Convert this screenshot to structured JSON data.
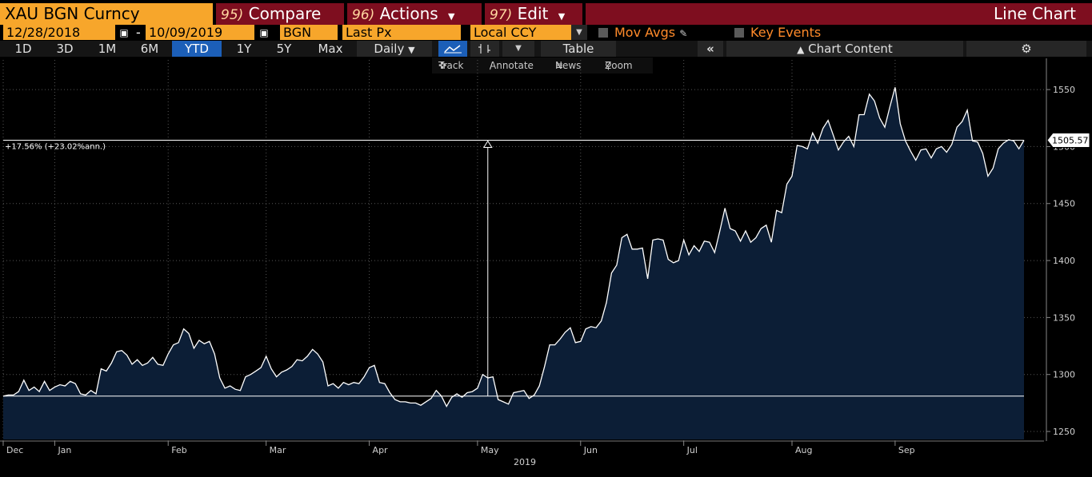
{
  "toolbar": {
    "security": "XAU BGN Curncy",
    "compare_num": "95)",
    "compare_label": "Compare",
    "actions_num": "96)",
    "actions_label": "Actions",
    "edit_num": "97)",
    "edit_label": "Edit",
    "view_title": "Line Chart"
  },
  "settings": {
    "start_date": "12/28/2018",
    "end_date": "10/09/2019",
    "date_separator": "-",
    "source": "BGN",
    "field": "Last Px",
    "currency": "Local CCY",
    "mov_avgs": "Mov Avgs",
    "key_events": "Key Events"
  },
  "periods": [
    "1D",
    "3D",
    "1M",
    "6M",
    "YTD",
    "1Y",
    "5Y",
    "Max"
  ],
  "selected_period": "YTD",
  "frequency": "Daily",
  "table_label": "Table",
  "chart_content_label": "Chart Content",
  "subtools": {
    "track": "Track",
    "annotate": "Annotate",
    "news": "News",
    "zoom": "Zoom"
  },
  "colors": {
    "orange": "#f7a62b",
    "maroon": "#7e0e1f",
    "selected": "#1c5fb8",
    "area_fill": "#0c1e36",
    "line": "#ffffff"
  },
  "chart_data": {
    "type": "area",
    "ylim": [
      1243,
      1562
    ],
    "yticks": [
      1250,
      1300,
      1350,
      1400,
      1450,
      1500,
      1550
    ],
    "xticks": [
      {
        "label": "Dec",
        "i": 0
      },
      {
        "label": "Jan",
        "i": 10
      },
      {
        "label": "Feb",
        "i": 32
      },
      {
        "label": "Mar",
        "i": 51
      },
      {
        "label": "Apr",
        "i": 71
      },
      {
        "label": "May",
        "i": 92
      },
      {
        "label": "Jun",
        "i": 112
      },
      {
        "label": "Jul",
        "i": 132
      },
      {
        "label": "Aug",
        "i": 153
      },
      {
        "label": "Sep",
        "i": 173
      }
    ],
    "year_label": "2019",
    "last_value_label": "1505.57",
    "change_label": "+17.56% (+23.02%ann.)",
    "base_value": 1281,
    "marker_index": 94,
    "values": [
      1281,
      1282,
      1282,
      1285,
      1295,
      1286,
      1289,
      1285,
      1294,
      1286,
      1289,
      1291,
      1290,
      1294,
      1292,
      1283,
      1282,
      1286,
      1283,
      1305,
      1303,
      1310,
      1320,
      1321,
      1317,
      1309,
      1313,
      1308,
      1310,
      1315,
      1309,
      1308,
      1318,
      1326,
      1328,
      1340,
      1336,
      1323,
      1330,
      1327,
      1329,
      1318,
      1297,
      1288,
      1290,
      1287,
      1286,
      1298,
      1300,
      1303,
      1306,
      1316,
      1305,
      1298,
      1302,
      1304,
      1307,
      1313,
      1312,
      1316,
      1322,
      1318,
      1311,
      1290,
      1292,
      1288,
      1293,
      1291,
      1293,
      1292,
      1298,
      1306,
      1308,
      1293,
      1292,
      1284,
      1278,
      1276,
      1276,
      1275,
      1275,
      1273,
      1276,
      1279,
      1286,
      1281,
      1272,
      1280,
      1283,
      1280,
      1284,
      1285,
      1288,
      1300,
      1297,
      1298,
      1278,
      1276,
      1274,
      1284,
      1285,
      1286,
      1279,
      1282,
      1290,
      1307,
      1326,
      1326,
      1331,
      1337,
      1341,
      1328,
      1329,
      1340,
      1342,
      1341,
      1347,
      1363,
      1389,
      1396,
      1420,
      1423,
      1410,
      1410,
      1411,
      1384,
      1418,
      1419,
      1418,
      1401,
      1398,
      1400,
      1418,
      1405,
      1413,
      1408,
      1417,
      1416,
      1407,
      1426,
      1446,
      1428,
      1426,
      1417,
      1426,
      1416,
      1420,
      1428,
      1431,
      1416,
      1444,
      1442,
      1467,
      1474,
      1501,
      1500,
      1498,
      1512,
      1503,
      1516,
      1523,
      1510,
      1497,
      1504,
      1509,
      1500,
      1528,
      1528,
      1546,
      1540,
      1525,
      1517,
      1535,
      1552,
      1520,
      1505,
      1496,
      1488,
      1497,
      1498,
      1490,
      1498,
      1500,
      1495,
      1502,
      1517,
      1522,
      1532,
      1505,
      1504,
      1494,
      1474,
      1481,
      1498,
      1503,
      1506,
      1505,
      1498,
      1505.57
    ]
  }
}
